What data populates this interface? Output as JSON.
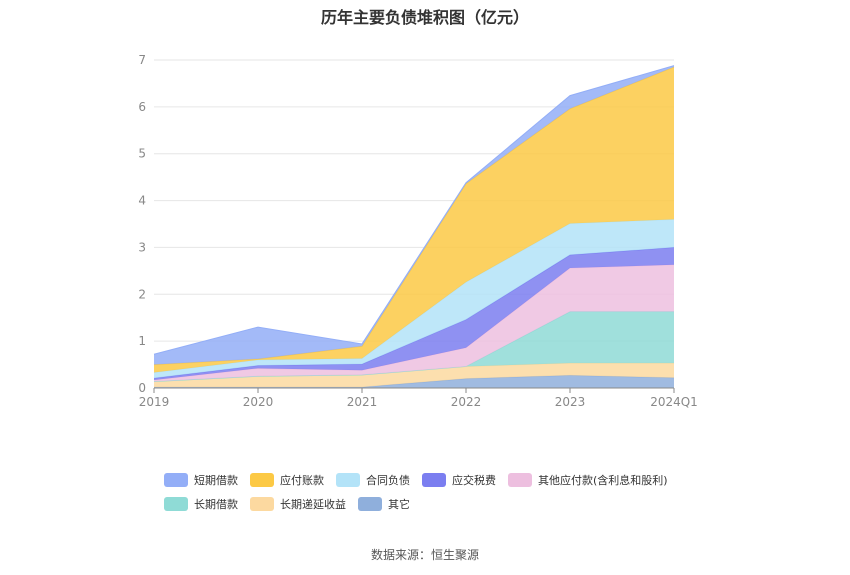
{
  "chart_data": {
    "type": "area",
    "stacked": true,
    "title": "历年主要负债堆积图（亿元）",
    "categories": [
      "2019",
      "2020",
      "2021",
      "2022",
      "2023",
      "2024Q1"
    ],
    "ylim": [
      0,
      7
    ],
    "yticks": [
      "0",
      "1",
      "2",
      "3",
      "4",
      "5",
      "6",
      "7"
    ],
    "grid": true,
    "legend_position": "bottom",
    "series": [
      {
        "name": "其它",
        "color": "#8fafdc",
        "values": [
          0.02,
          0.02,
          0.02,
          0.2,
          0.27,
          0.22
        ]
      },
      {
        "name": "长期递延收益",
        "color": "#fcd9a0",
        "values": [
          0.12,
          0.23,
          0.26,
          0.26,
          0.26,
          0.31
        ]
      },
      {
        "name": "长期借款",
        "color": "#8fdbd6",
        "values": [
          0,
          0,
          0,
          0,
          1.1,
          1.1
        ]
      },
      {
        "name": "其他应付款(含利息和股利)",
        "color": "#edbfdf",
        "values": [
          0.03,
          0.17,
          0.1,
          0.4,
          0.93,
          1.0
        ]
      },
      {
        "name": "应交税费",
        "color": "#7b7ef0",
        "values": [
          0.04,
          0.06,
          0.13,
          0.6,
          0.28,
          0.37
        ]
      },
      {
        "name": "合同负债",
        "color": "#b3e3f8",
        "values": [
          0.12,
          0.12,
          0.12,
          0.8,
          0.67,
          0.6
        ]
      },
      {
        "name": "应付账款",
        "color": "#fcc945",
        "values": [
          0.17,
          0.02,
          0.26,
          2.1,
          2.45,
          3.25
        ]
      },
      {
        "name": "短期借款",
        "color": "#93aef7",
        "values": [
          0.22,
          0.68,
          0.05,
          0.02,
          0.28,
          0.03
        ]
      }
    ],
    "legend_order": [
      "短期借款",
      "应付账款",
      "合同负债",
      "应交税费",
      "其他应付款(含利息和股利)",
      "长期借款",
      "长期递延收益",
      "其它"
    ]
  },
  "source": "数据来源：恒生聚源"
}
